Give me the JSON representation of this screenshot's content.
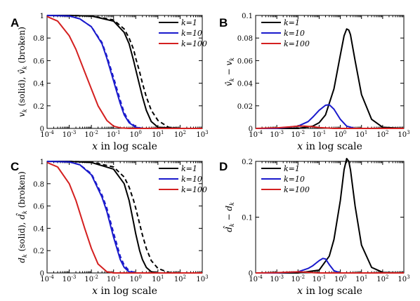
{
  "chart_data": [
    {
      "panel": "A",
      "type": "line",
      "xlabel": "x in log scale",
      "ylabel": "v_k (solid), v̂_k (broken)",
      "xscale": "log",
      "xlim": [
        0.0001,
        1000
      ],
      "ylim": [
        0,
        1
      ],
      "xticks": [
        "10^-4",
        "10^-3",
        "10^-2",
        "10^-1",
        "10^0",
        "10^1",
        "10^2",
        "10^3"
      ],
      "yticks": [
        "0",
        "0.2",
        "0.4",
        "0.6",
        "0.8",
        "1"
      ],
      "legend": {
        "placement": "top-right",
        "entries": [
          "k=1",
          "k=10",
          "k=100"
        ]
      },
      "series": [
        {
          "name": "k=1",
          "style": "solid",
          "color": "#000000",
          "x": [
            0.0001,
            0.001,
            0.01,
            0.1,
            0.3,
            0.5,
            0.8,
            1,
            1.5,
            2,
            3,
            5,
            10,
            100,
            1000
          ],
          "y": [
            1,
            1,
            0.995,
            0.95,
            0.85,
            0.75,
            0.6,
            0.52,
            0.38,
            0.28,
            0.16,
            0.06,
            0.01,
            0,
            0
          ]
        },
        {
          "name": "k=1",
          "style": "dashed",
          "color": "#000000",
          "x": [
            0.0001,
            0.001,
            0.01,
            0.1,
            0.3,
            0.5,
            0.8,
            1,
            1.5,
            2,
            3,
            5,
            10,
            30,
            100,
            1000
          ],
          "y": [
            1,
            1,
            0.995,
            0.96,
            0.88,
            0.8,
            0.7,
            0.62,
            0.5,
            0.4,
            0.28,
            0.16,
            0.07,
            0.01,
            0,
            0
          ]
        },
        {
          "name": "k=10",
          "style": "solid",
          "color": "#1a1acc",
          "x": [
            0.0001,
            0.001,
            0.003,
            0.01,
            0.03,
            0.05,
            0.1,
            0.2,
            0.3,
            0.5,
            1,
            2,
            10,
            1000
          ],
          "y": [
            1,
            0.995,
            0.97,
            0.9,
            0.75,
            0.62,
            0.42,
            0.22,
            0.12,
            0.05,
            0.01,
            0,
            0,
            0
          ]
        },
        {
          "name": "k=10",
          "style": "dashed",
          "color": "#1a1acc",
          "x": [
            0.0001,
            0.001,
            0.003,
            0.01,
            0.03,
            0.05,
            0.1,
            0.2,
            0.3,
            0.5,
            1,
            2,
            10,
            1000
          ],
          "y": [
            1,
            0.995,
            0.97,
            0.9,
            0.76,
            0.64,
            0.45,
            0.25,
            0.14,
            0.06,
            0.015,
            0,
            0,
            0
          ]
        },
        {
          "name": "k=100",
          "style": "solid",
          "color": "#d42020",
          "x": [
            0.0001,
            0.0003,
            0.001,
            0.002,
            0.005,
            0.01,
            0.02,
            0.05,
            0.1,
            0.2,
            0.5,
            1,
            1000
          ],
          "y": [
            0.99,
            0.95,
            0.82,
            0.7,
            0.5,
            0.35,
            0.2,
            0.07,
            0.02,
            0.005,
            0,
            0,
            0
          ]
        }
      ]
    },
    {
      "panel": "B",
      "type": "line",
      "xlabel": "x in log scale",
      "ylabel": "v̂_k − v_k",
      "xscale": "log",
      "xlim": [
        0.0001,
        1000
      ],
      "ylim": [
        0,
        0.1
      ],
      "xticks": [
        "10^-4",
        "10^-3",
        "10^-2",
        "10^-1",
        "10^0",
        "10^1",
        "10^2",
        "10^3"
      ],
      "yticks": [
        "0",
        "0.02",
        "0.04",
        "0.06",
        "0.08",
        "0.1"
      ],
      "legend": {
        "placement": "top-left",
        "entries": [
          "k=1",
          "k=10",
          "k=100"
        ]
      },
      "series": [
        {
          "name": "k=1",
          "style": "solid",
          "color": "#000000",
          "x": [
            0.0001,
            0.01,
            0.05,
            0.1,
            0.2,
            0.5,
            1,
            1.5,
            2,
            2.5,
            3,
            5,
            10,
            30,
            100,
            1000
          ],
          "y": [
            0,
            0,
            0.002,
            0.005,
            0.012,
            0.035,
            0.065,
            0.082,
            0.088,
            0.087,
            0.083,
            0.06,
            0.03,
            0.008,
            0.001,
            0
          ]
        },
        {
          "name": "k=10",
          "style": "solid",
          "color": "#1a1acc",
          "x": [
            0.0001,
            0.001,
            0.01,
            0.03,
            0.05,
            0.1,
            0.2,
            0.3,
            0.5,
            1,
            2,
            5,
            1000
          ],
          "y": [
            0,
            0,
            0.002,
            0.006,
            0.01,
            0.016,
            0.0205,
            0.021,
            0.017,
            0.008,
            0.002,
            0,
            0
          ]
        },
        {
          "name": "k=100",
          "style": "solid",
          "color": "#d42020",
          "x": [
            0.0001,
            0.001,
            0.005,
            0.01,
            0.02,
            0.05,
            0.1,
            0.5,
            1000
          ],
          "y": [
            0,
            0.0005,
            0.0015,
            0.002,
            0.002,
            0.0015,
            0.0008,
            0,
            0
          ]
        }
      ]
    },
    {
      "panel": "C",
      "type": "line",
      "xlabel": "x in log scale",
      "ylabel": "d_k (solid), d̂_k (broken)",
      "xscale": "log",
      "xlim": [
        0.0001,
        1000
      ],
      "ylim": [
        0,
        1
      ],
      "xticks": [
        "10^-4",
        "10^-3",
        "10^-2",
        "10^-1",
        "10^0",
        "10^1",
        "10^2",
        "10^3"
      ],
      "yticks": [
        "0",
        "0.2",
        "0.4",
        "0.6",
        "0.8",
        "1"
      ],
      "legend": {
        "placement": "top-right",
        "entries": [
          "k=1",
          "k=10",
          "k=100"
        ]
      },
      "series": [
        {
          "name": "k=1",
          "style": "solid",
          "color": "#000000",
          "x": [
            0.0001,
            0.001,
            0.01,
            0.1,
            0.3,
            0.5,
            0.8,
            1,
            1.5,
            2,
            3,
            5,
            10,
            1000
          ],
          "y": [
            1,
            1,
            0.99,
            0.93,
            0.8,
            0.65,
            0.45,
            0.35,
            0.2,
            0.12,
            0.05,
            0.01,
            0,
            0
          ]
        },
        {
          "name": "k=1",
          "style": "dashed",
          "color": "#000000",
          "x": [
            0.0001,
            0.001,
            0.01,
            0.1,
            0.3,
            0.5,
            0.8,
            1,
            1.5,
            2,
            3,
            5,
            10,
            30,
            100,
            1000
          ],
          "y": [
            1,
            1,
            0.995,
            0.95,
            0.86,
            0.77,
            0.65,
            0.58,
            0.44,
            0.34,
            0.22,
            0.11,
            0.04,
            0.005,
            0,
            0
          ]
        },
        {
          "name": "k=10",
          "style": "solid",
          "color": "#1a1acc",
          "x": [
            0.0001,
            0.001,
            0.003,
            0.01,
            0.03,
            0.05,
            0.1,
            0.2,
            0.3,
            0.5,
            1,
            1000
          ],
          "y": [
            1,
            0.995,
            0.97,
            0.88,
            0.68,
            0.55,
            0.32,
            0.12,
            0.05,
            0.01,
            0,
            0
          ]
        },
        {
          "name": "k=10",
          "style": "dashed",
          "color": "#1a1acc",
          "x": [
            0.0001,
            0.001,
            0.003,
            0.01,
            0.03,
            0.05,
            0.1,
            0.2,
            0.3,
            0.5,
            1,
            1000
          ],
          "y": [
            1,
            0.995,
            0.97,
            0.89,
            0.7,
            0.58,
            0.36,
            0.15,
            0.07,
            0.02,
            0,
            0
          ]
        },
        {
          "name": "k=100",
          "style": "solid",
          "color": "#d42020",
          "x": [
            0.0001,
            0.0003,
            0.001,
            0.002,
            0.005,
            0.01,
            0.02,
            0.05,
            0.1,
            1000
          ],
          "y": [
            0.99,
            0.95,
            0.8,
            0.65,
            0.4,
            0.22,
            0.08,
            0.01,
            0,
            0
          ]
        }
      ]
    },
    {
      "panel": "D",
      "type": "line",
      "xlabel": "x in log scale",
      "ylabel": "d̂_k − d_k",
      "xscale": "log",
      "xlim": [
        0.0001,
        1000
      ],
      "ylim": [
        0,
        0.2
      ],
      "xticks": [
        "10^-4",
        "10^-3",
        "10^-2",
        "10^-1",
        "10^0",
        "10^1",
        "10^2",
        "10^3"
      ],
      "yticks": [
        "0",
        "0.1",
        "0.2"
      ],
      "legend": {
        "placement": "top-left",
        "entries": [
          "k=1",
          "k=10",
          "k=100"
        ]
      },
      "series": [
        {
          "name": "k=1",
          "style": "solid",
          "color": "#000000",
          "x": [
            0.0001,
            0.01,
            0.1,
            0.3,
            0.5,
            1,
            1.5,
            2,
            2.5,
            3,
            5,
            10,
            30,
            100,
            1000
          ],
          "y": [
            0,
            0,
            0.005,
            0.03,
            0.06,
            0.13,
            0.185,
            0.205,
            0.2,
            0.185,
            0.12,
            0.05,
            0.01,
            0.001,
            0
          ]
        },
        {
          "name": "k=10",
          "style": "solid",
          "color": "#1a1acc",
          "x": [
            0.0001,
            0.001,
            0.01,
            0.03,
            0.05,
            0.1,
            0.15,
            0.2,
            0.3,
            0.5,
            1,
            1000
          ],
          "y": [
            0,
            0,
            0.002,
            0.008,
            0.013,
            0.022,
            0.026,
            0.025,
            0.015,
            0.004,
            0,
            0
          ]
        },
        {
          "name": "k=100",
          "style": "solid",
          "color": "#d42020",
          "x": [
            0.0001,
            0.001,
            0.005,
            0.01,
            0.02,
            0.05,
            0.1,
            1000
          ],
          "y": [
            0,
            0.0005,
            0.0015,
            0.002,
            0.0015,
            0.0005,
            0,
            0
          ]
        }
      ]
    }
  ],
  "panels": {
    "A": {
      "letter": "A"
    },
    "B": {
      "letter": "B"
    },
    "C": {
      "letter": "C"
    },
    "D": {
      "letter": "D"
    }
  }
}
